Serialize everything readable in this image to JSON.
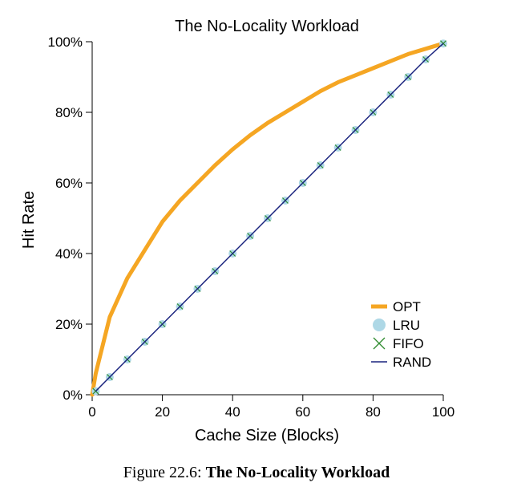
{
  "caption": {
    "prefix": "Figure 22.6:",
    "title": "The No-Locality Workload"
  },
  "chart_data": {
    "type": "line",
    "title": "The No-Locality Workload",
    "xlabel": "Cache Size (Blocks)",
    "ylabel": "Hit Rate",
    "xlim": [
      0,
      100
    ],
    "ylim": [
      0,
      100
    ],
    "xticks": [
      0,
      20,
      40,
      60,
      80,
      100
    ],
    "yticks": [
      0,
      20,
      40,
      60,
      80,
      100
    ],
    "ytick_labels": [
      "0%",
      "20%",
      "40%",
      "60%",
      "80%",
      "100%"
    ],
    "grid": false,
    "legend_position": "bottom-right",
    "x": [
      1,
      5,
      10,
      15,
      20,
      25,
      30,
      35,
      40,
      45,
      50,
      55,
      60,
      65,
      70,
      75,
      80,
      85,
      90,
      95,
      100
    ],
    "series": [
      {
        "name": "OPT",
        "style": "line",
        "color": "#f5a623",
        "values": [
          6.0,
          22.0,
          33.0,
          41.0,
          49.0,
          55.0,
          60.0,
          65.0,
          69.5,
          73.5,
          77.0,
          80.0,
          83.0,
          86.0,
          88.5,
          90.5,
          92.5,
          94.5,
          96.5,
          98.0,
          99.5
        ]
      },
      {
        "name": "LRU",
        "style": "circle",
        "color": "#aed8e6",
        "values": [
          1.0,
          5.0,
          10.0,
          15.0,
          20.0,
          25.0,
          30.0,
          35.0,
          40.0,
          45.0,
          50.0,
          55.0,
          60.0,
          65.0,
          70.0,
          75.0,
          80.0,
          85.0,
          90.0,
          95.0,
          99.5
        ]
      },
      {
        "name": "FIFO",
        "style": "x-marker",
        "color": "#2e8b2e",
        "values": [
          1.0,
          5.0,
          10.0,
          15.0,
          20.0,
          25.0,
          30.0,
          35.0,
          40.0,
          45.0,
          50.0,
          55.0,
          60.0,
          65.0,
          70.0,
          75.0,
          80.0,
          85.0,
          90.0,
          95.0,
          99.5
        ]
      },
      {
        "name": "RAND",
        "style": "line",
        "color": "#1a237e",
        "values": [
          1.0,
          5.0,
          10.0,
          15.0,
          20.0,
          25.0,
          30.0,
          35.0,
          40.0,
          45.0,
          50.0,
          55.0,
          60.0,
          65.0,
          70.0,
          75.0,
          80.0,
          85.0,
          90.0,
          95.0,
          99.5
        ]
      }
    ]
  }
}
